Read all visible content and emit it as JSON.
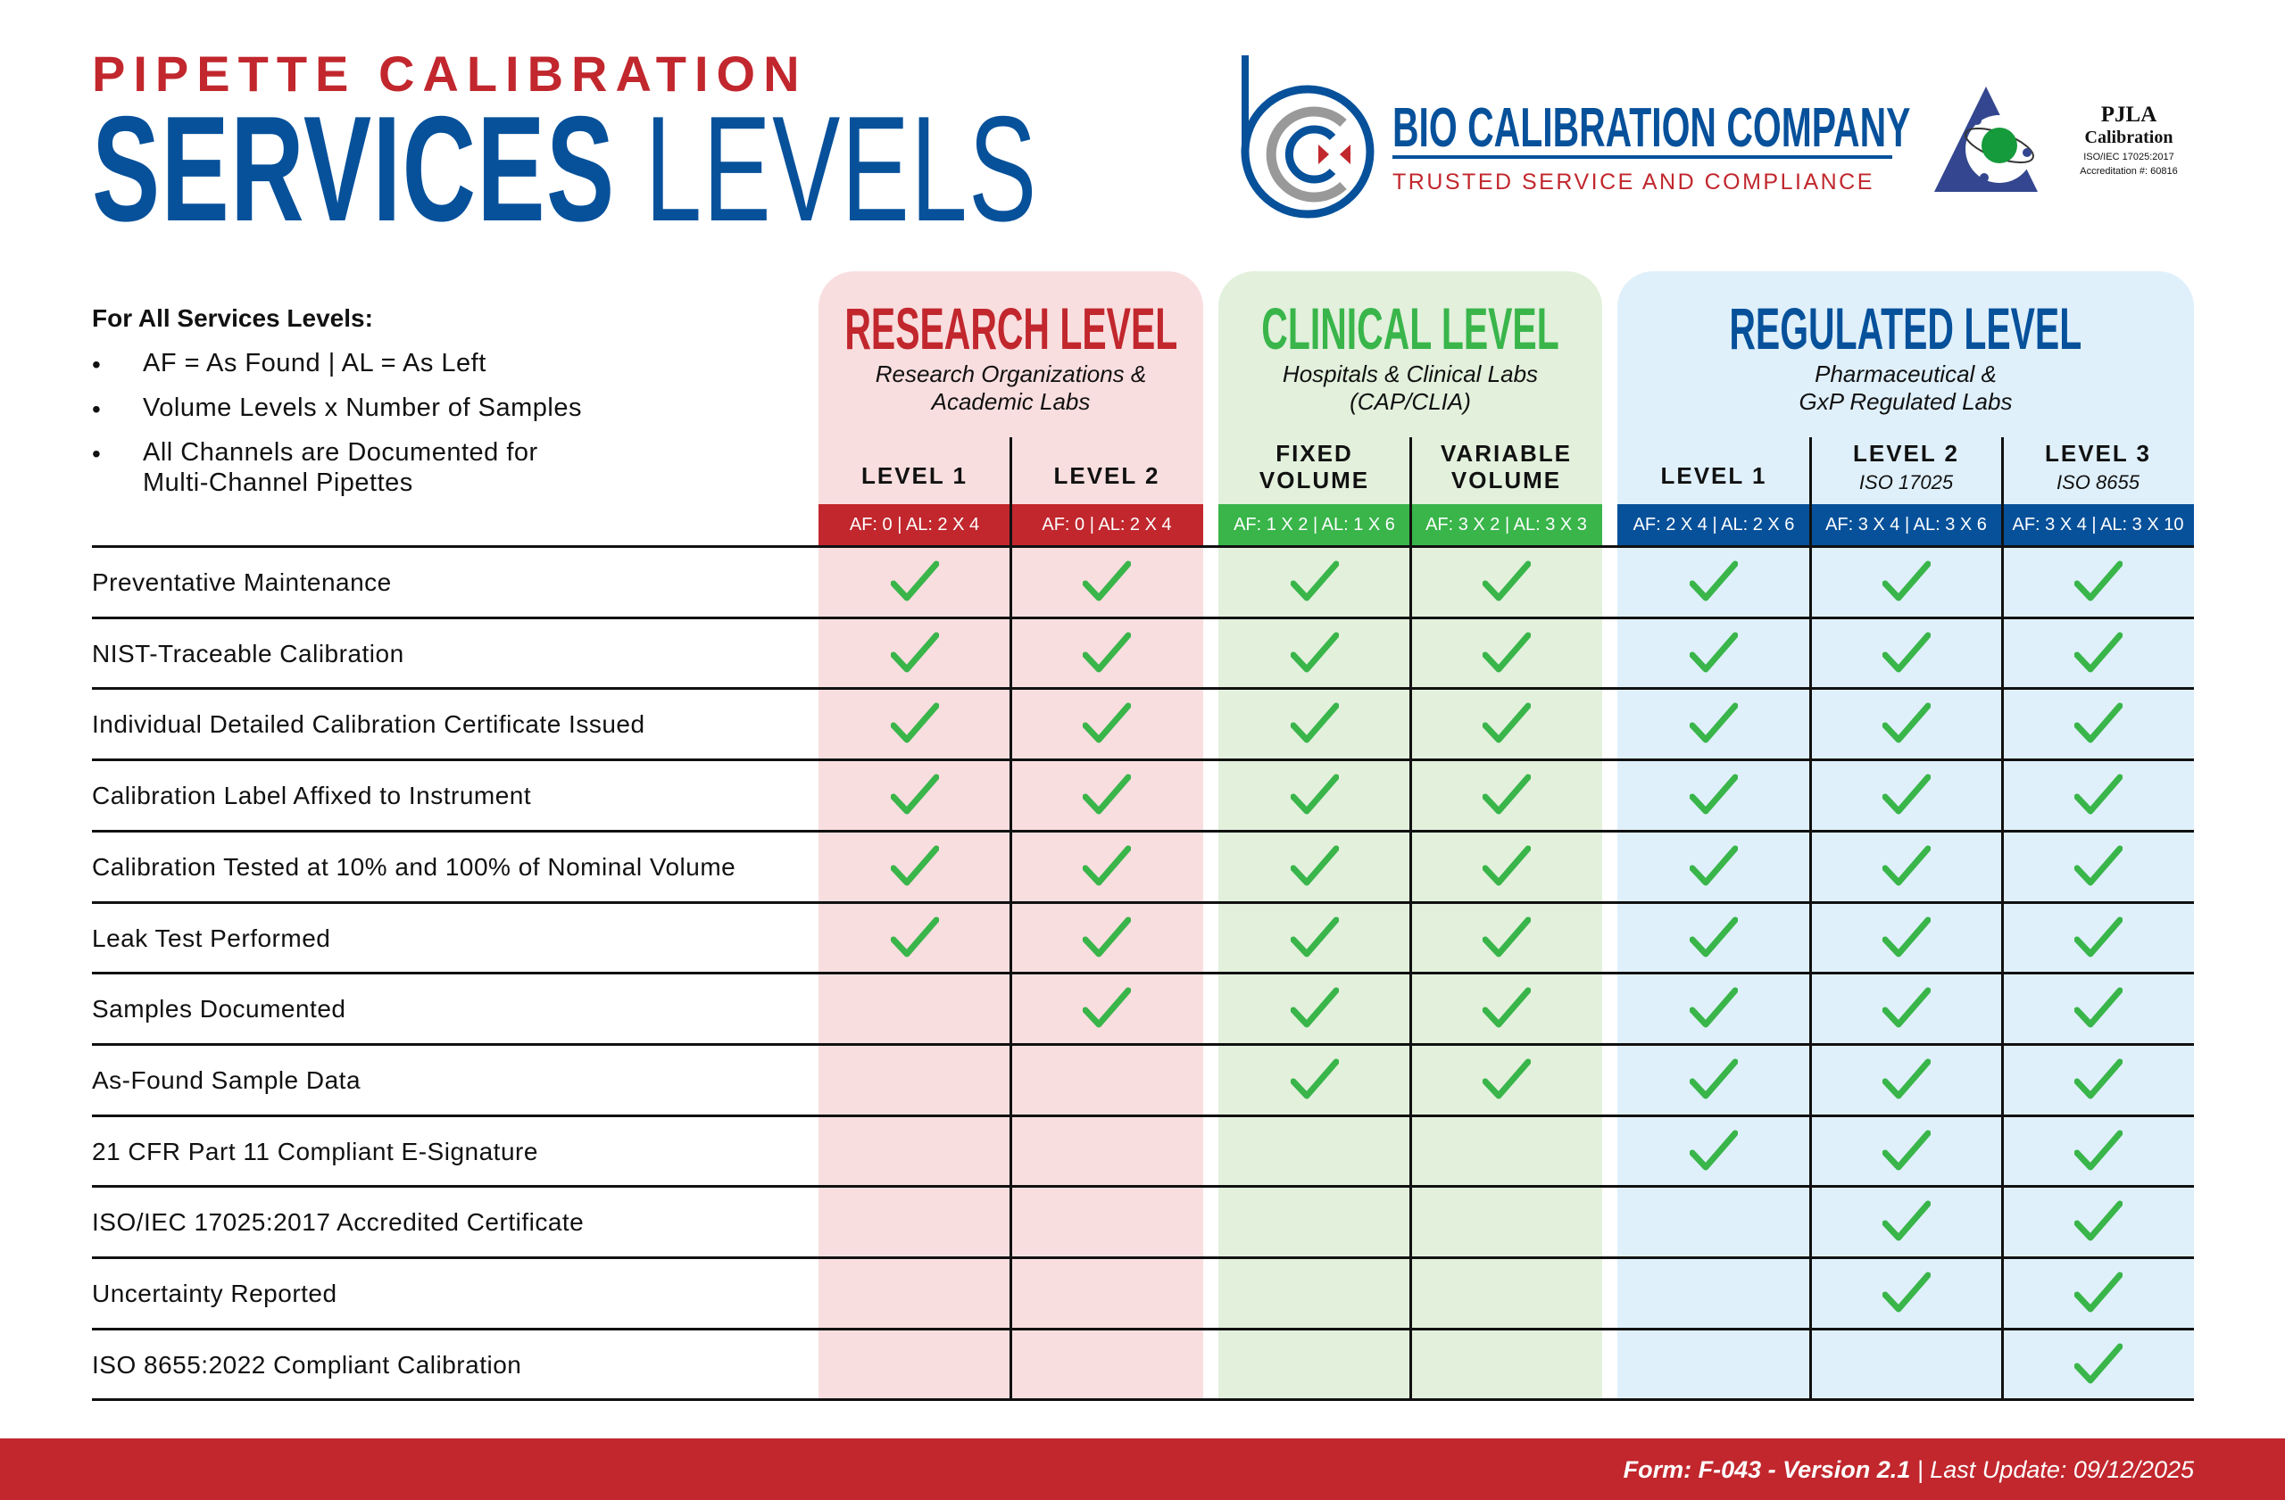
{
  "header": {
    "supertitle": "PIPETTE CALIBRATION",
    "title_bold": "SERVICES",
    "title_light": "LEVELS"
  },
  "company": {
    "name": "BIO CALIBRATION COMPANY",
    "tagline": "TRUSTED SERVICE AND COMPLIANCE"
  },
  "accreditation": {
    "name": "PJLA",
    "type": "Calibration",
    "standard": "ISO/IEC 17025:2017",
    "number": "Accreditation #:  60816"
  },
  "notes": {
    "heading": "For All Services Levels:",
    "bullet": "•",
    "items": [
      "AF = As Found | AL = As Left",
      "Volume Levels x Number of Samples",
      "All Channels are Documented for",
      "Multi-Channel Pipettes"
    ]
  },
  "tiers": [
    {
      "title": "RESEARCH LEVEL",
      "subtitle": [
        "Research Organizations &",
        "Academic Labs"
      ],
      "color": "#c1272d",
      "bg": "#f9dedf"
    },
    {
      "title": "CLINICAL LEVEL",
      "subtitle": [
        "Hospitals & Clinical Labs",
        "(CAP/CLIA)"
      ],
      "color": "#39b54a",
      "bg": "#e2f0dc"
    },
    {
      "title": "REGULATED LEVEL",
      "subtitle": [
        "Pharmaceutical &",
        "GxP Regulated Labs"
      ],
      "color": "#07519b",
      "bg": "#dff0fb"
    }
  ],
  "columns": [
    {
      "label": [
        "LEVEL 1"
      ],
      "sub": "",
      "af": "AF: 0 | AL: 2 X 4"
    },
    {
      "label": [
        "LEVEL 2"
      ],
      "sub": "",
      "af": "AF: 0 | AL: 2 X 4"
    },
    {
      "label": [
        "FIXED",
        "VOLUME"
      ],
      "sub": "",
      "af": "AF: 1 X 2 | AL: 1 X 6"
    },
    {
      "label": [
        "VARIABLE",
        "VOLUME"
      ],
      "sub": "",
      "af": "AF: 3 X 2 | AL: 3 X 3"
    },
    {
      "label": [
        "LEVEL 1"
      ],
      "sub": "",
      "af": "AF: 2 X 4 | AL: 2 X 6"
    },
    {
      "label": [
        "LEVEL 2"
      ],
      "sub": "ISO 17025",
      "af": "AF: 3 X 4 | AL: 3 X 6"
    },
    {
      "label": [
        "LEVEL 3"
      ],
      "sub": "ISO 8655",
      "af": "AF: 3 X 4 | AL: 3 X 10"
    }
  ],
  "check_color": "#39b54a",
  "rows": [
    {
      "label": "Preventative Maintenance",
      "checks": [
        1,
        1,
        1,
        1,
        1,
        1,
        1
      ]
    },
    {
      "label": "NIST-Traceable Calibration",
      "checks": [
        1,
        1,
        1,
        1,
        1,
        1,
        1
      ]
    },
    {
      "label": "Individual Detailed Calibration Certificate Issued",
      "checks": [
        1,
        1,
        1,
        1,
        1,
        1,
        1
      ]
    },
    {
      "label": "Calibration Label Affixed to Instrument",
      "checks": [
        1,
        1,
        1,
        1,
        1,
        1,
        1
      ]
    },
    {
      "label": "Calibration Tested at 10% and 100% of Nominal Volume",
      "checks": [
        1,
        1,
        1,
        1,
        1,
        1,
        1
      ]
    },
    {
      "label": "Leak Test Performed",
      "checks": [
        1,
        1,
        1,
        1,
        1,
        1,
        1
      ]
    },
    {
      "label": "Samples Documented",
      "checks": [
        0,
        1,
        1,
        1,
        1,
        1,
        1
      ]
    },
    {
      "label": "As-Found Sample Data",
      "checks": [
        0,
        0,
        1,
        1,
        1,
        1,
        1
      ]
    },
    {
      "label": "21 CFR Part 11 Compliant E-Signature",
      "checks": [
        0,
        0,
        0,
        0,
        1,
        1,
        1
      ]
    },
    {
      "label": "ISO/IEC 17025:2017 Accredited Certificate",
      "checks": [
        0,
        0,
        0,
        0,
        0,
        1,
        1
      ]
    },
    {
      "label": "Uncertainty Reported",
      "checks": [
        0,
        0,
        0,
        0,
        0,
        1,
        1
      ]
    },
    {
      "label": "ISO 8655:2022 Compliant Calibration",
      "checks": [
        0,
        0,
        0,
        0,
        0,
        0,
        1
      ]
    }
  ],
  "footer": {
    "form": "Form: F-043 - Version 2.1",
    "separator": " | ",
    "updated": "Last Update: 09/12/2025"
  }
}
